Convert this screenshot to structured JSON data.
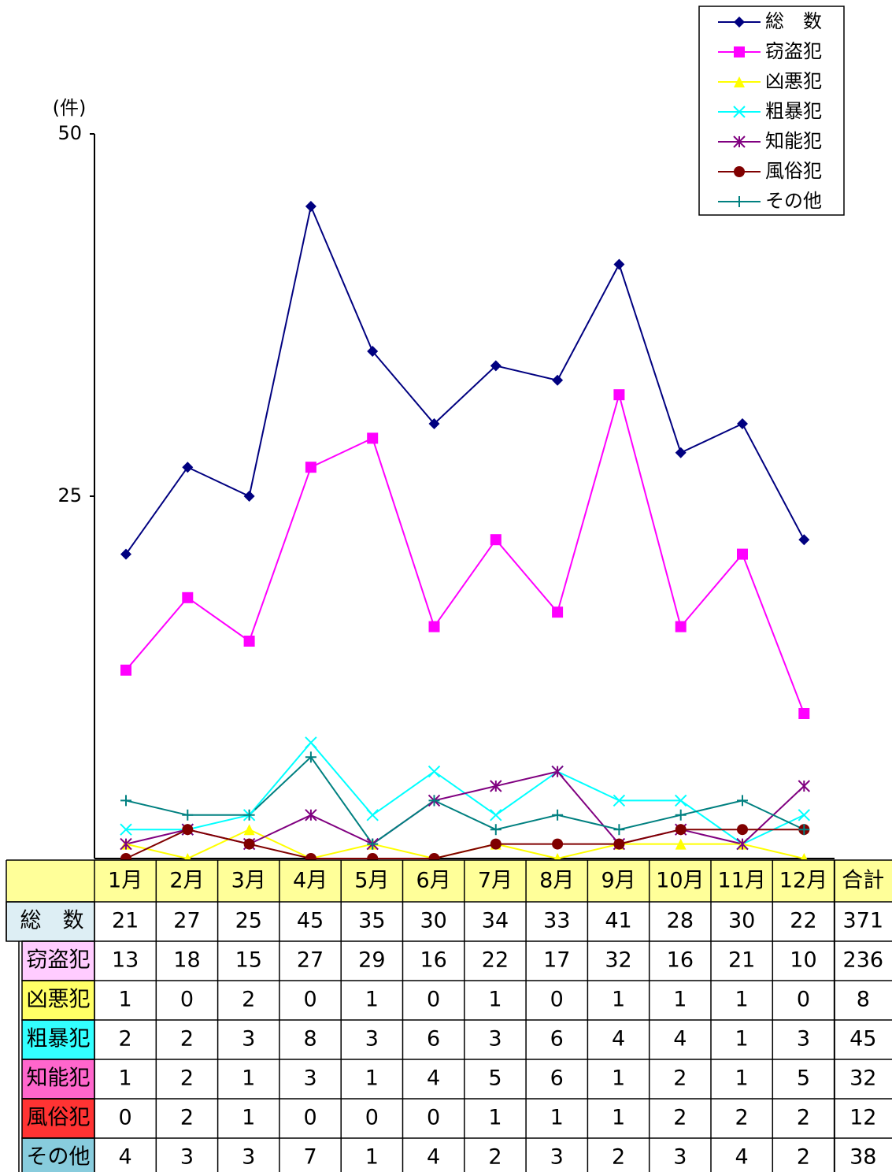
{
  "chart_data": {
    "type": "line",
    "y_label": "(件)",
    "categories": [
      "1月",
      "2月",
      "3月",
      "4月",
      "5月",
      "6月",
      "7月",
      "8月",
      "9月",
      "10月",
      "11月",
      "12月"
    ],
    "ylim": [
      0,
      50
    ],
    "yticks": [
      25,
      50
    ],
    "legend": "top-right",
    "series": [
      {
        "name": "総　数",
        "color": "#000080",
        "marker": "diamond",
        "values": [
          21,
          27,
          25,
          45,
          35,
          30,
          34,
          33,
          41,
          28,
          30,
          22
        ]
      },
      {
        "name": "窃盗犯",
        "color": "#ff00ff",
        "marker": "square",
        "values": [
          13,
          18,
          15,
          27,
          29,
          16,
          22,
          17,
          32,
          16,
          21,
          10
        ]
      },
      {
        "name": "凶悪犯",
        "color": "#ffff00",
        "marker": "triangle",
        "values": [
          1,
          0,
          2,
          0,
          1,
          0,
          1,
          0,
          1,
          1,
          1,
          0
        ]
      },
      {
        "name": "粗暴犯",
        "color": "#00ffff",
        "marker": "x",
        "values": [
          2,
          2,
          3,
          8,
          3,
          6,
          3,
          6,
          4,
          4,
          1,
          3
        ]
      },
      {
        "name": "知能犯",
        "color": "#800080",
        "marker": "star",
        "values": [
          1,
          2,
          1,
          3,
          1,
          4,
          5,
          6,
          1,
          2,
          1,
          5
        ]
      },
      {
        "name": "風俗犯",
        "color": "#800000",
        "marker": "circle",
        "values": [
          0,
          2,
          1,
          0,
          0,
          0,
          1,
          1,
          1,
          2,
          2,
          2
        ]
      },
      {
        "name": "その他",
        "color": "#008080",
        "marker": "plus",
        "values": [
          4,
          3,
          3,
          7,
          1,
          4,
          2,
          3,
          2,
          3,
          4,
          2
        ]
      }
    ]
  },
  "table": {
    "total_header": "合計",
    "totals": [
      371,
      236,
      8,
      45,
      32,
      12,
      38
    ]
  }
}
